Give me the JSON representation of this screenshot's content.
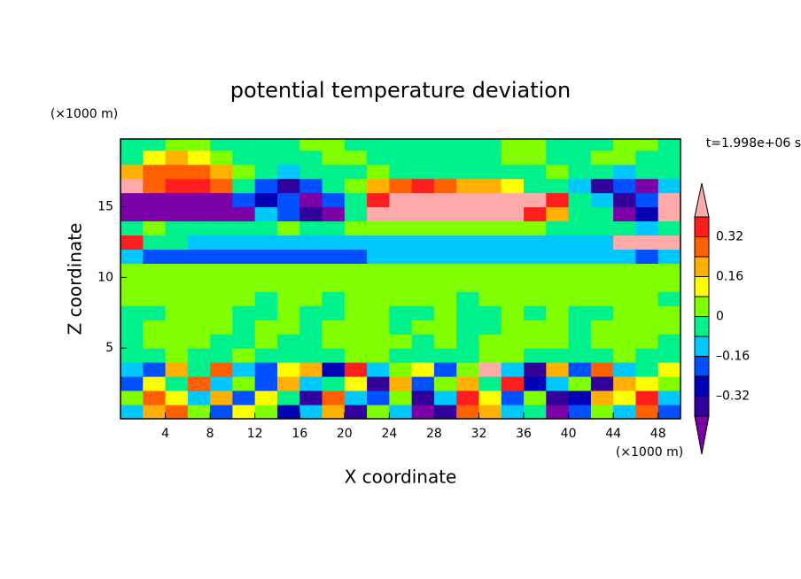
{
  "chart_data": {
    "type": "contour",
    "title": "potential temperature deviation",
    "subtitle": "t=1.998e+06 s",
    "xlabel": "X coordinate",
    "ylabel": "Z coordinate",
    "xunit": "(×1000 m)",
    "yunit": "(×1000 m)",
    "xlim": [
      0,
      50
    ],
    "ylim": [
      0,
      19.8
    ],
    "xticks": [
      4,
      8,
      12,
      16,
      20,
      24,
      28,
      32,
      36,
      40,
      44,
      48
    ],
    "yticks": [
      5,
      10,
      15
    ],
    "x": [
      1,
      3,
      5,
      7,
      9,
      11,
      13,
      15,
      17,
      19,
      21,
      23,
      25,
      27,
      29,
      31,
      33,
      35,
      37,
      39,
      41,
      43,
      45,
      47,
      49
    ],
    "z": [
      0.5,
      1.5,
      2.5,
      3.5,
      4.5,
      5.5,
      6.5,
      7.5,
      8.5,
      9.5,
      10.5,
      11.5,
      12.5,
      13.5,
      14.5,
      15.5,
      16.5,
      17.5,
      18.5,
      19.5
    ],
    "levels": [
      -0.4,
      -0.32,
      -0.24,
      -0.16,
      -0.08,
      0,
      0.08,
      0.16,
      0.24,
      0.32,
      0.4
    ],
    "colors": [
      "#7b00a8",
      "#32009a",
      "#0000b4",
      "#0050ff",
      "#00c8ff",
      "#00f08c",
      "#80ff00",
      "#ffff00",
      "#ffb000",
      "#ff6000",
      "#ff1e1e",
      "#ffaaaa"
    ],
    "colorbar_ticks": [
      {
        "value": 0.32,
        "label": "0.32"
      },
      {
        "value": 0.16,
        "label": "0.16"
      },
      0,
      {
        "value": -0.16,
        "label": "–0.16"
      },
      {
        "value": -0.32,
        "label": "–0.32"
      }
    ],
    "values": [
      [
        -0.12,
        0.2,
        0.28,
        0.04,
        -0.2,
        0.12,
        0.04,
        -0.28,
        -0.12,
        0.2,
        -0.36,
        0.04,
        -0.12,
        -0.45,
        -0.36,
        0.28,
        0.2,
        -0.12,
        -0.04,
        -0.45,
        -0.2,
        0.04,
        -0.12,
        0.28,
        -0.2
      ],
      [
        0.04,
        0.28,
        0.12,
        -0.12,
        0.2,
        -0.2,
        0.12,
        -0.04,
        -0.36,
        0.28,
        -0.12,
        -0.2,
        0.04,
        -0.36,
        -0.12,
        0.36,
        0.12,
        -0.2,
        0.04,
        -0.36,
        -0.28,
        0.2,
        0.12,
        0.36,
        -0.12
      ],
      [
        -0.2,
        0.12,
        -0.04,
        0.28,
        -0.12,
        0.04,
        -0.2,
        0.2,
        -0.12,
        -0.04,
        0.12,
        -0.36,
        0.2,
        -0.2,
        0.04,
        0.2,
        -0.04,
        0.36,
        -0.28,
        -0.12,
        0.04,
        -0.36,
        0.2,
        0.12,
        0.04
      ],
      [
        -0.12,
        -0.2,
        0.2,
        -0.04,
        0.28,
        -0.12,
        -0.2,
        0.12,
        0.2,
        -0.28,
        0.36,
        -0.12,
        0.04,
        0.12,
        -0.2,
        0.04,
        0.45,
        -0.12,
        -0.36,
        0.2,
        -0.2,
        0.28,
        -0.12,
        -0.04,
        0.12
      ],
      [
        -0.04,
        -0.04,
        0.04,
        -0.04,
        -0.04,
        0.04,
        -0.04,
        -0.04,
        -0.04,
        -0.04,
        0.04,
        0.04,
        -0.04,
        -0.04,
        -0.04,
        -0.04,
        0.04,
        0.04,
        -0.04,
        -0.04,
        -0.04,
        -0.04,
        0.04,
        -0.04,
        -0.04
      ],
      [
        -0.04,
        0.04,
        0.04,
        0.04,
        -0.04,
        -0.04,
        0.04,
        -0.04,
        -0.04,
        0.04,
        0.04,
        0.04,
        0.04,
        -0.04,
        0.04,
        -0.04,
        0.04,
        0.04,
        0.04,
        0.04,
        -0.04,
        0.04,
        0.04,
        0.04,
        -0.04
      ],
      [
        -0.04,
        0.04,
        0.04,
        0.04,
        0.04,
        -0.04,
        0.04,
        0.04,
        -0.04,
        0.04,
        0.04,
        0.04,
        -0.04,
        0.04,
        0.04,
        -0.04,
        -0.04,
        0.04,
        0.04,
        0.04,
        -0.04,
        0.04,
        0.04,
        0.04,
        0.04
      ],
      [
        -0.04,
        -0.04,
        0.04,
        0.04,
        0.04,
        -0.04,
        -0.04,
        0.04,
        -0.04,
        -0.04,
        0.04,
        0.04,
        -0.04,
        -0.04,
        0.04,
        -0.04,
        -0.04,
        0.04,
        -0.04,
        0.04,
        -0.04,
        -0.04,
        0.04,
        0.04,
        0.04
      ],
      [
        0.04,
        0.04,
        0.04,
        0.04,
        0.04,
        0.04,
        -0.04,
        0.04,
        0.04,
        -0.04,
        0.04,
        0.04,
        0.04,
        0.04,
        0.04,
        -0.04,
        0.04,
        0.04,
        0.04,
        0.04,
        0.04,
        0.04,
        0.04,
        0.04,
        -0.04
      ],
      [
        0.04,
        0.04,
        0.04,
        0.04,
        0.04,
        0.04,
        0.04,
        0.04,
        0.04,
        0.04,
        0.04,
        0.04,
        0.04,
        0.04,
        0.04,
        0.04,
        0.04,
        0.04,
        0.04,
        0.04,
        0.04,
        0.04,
        0.04,
        0.04,
        0.04
      ],
      [
        0.04,
        0.04,
        0.04,
        0.04,
        0.04,
        0.04,
        0.04,
        0.04,
        0.04,
        0.04,
        0.04,
        0.04,
        0.04,
        0.04,
        0.04,
        0.04,
        0.04,
        0.04,
        0.04,
        0.04,
        0.04,
        0.04,
        0.04,
        0.04,
        0.04
      ],
      [
        -0.12,
        -0.2,
        -0.2,
        -0.2,
        -0.2,
        -0.2,
        -0.2,
        -0.2,
        -0.2,
        -0.2,
        -0.2,
        -0.12,
        -0.12,
        -0.12,
        -0.12,
        -0.12,
        -0.12,
        -0.12,
        -0.12,
        -0.12,
        -0.12,
        -0.12,
        -0.12,
        -0.2,
        -0.12
      ],
      [
        0.36,
        -0.04,
        -0.04,
        -0.12,
        -0.12,
        -0.12,
        -0.12,
        -0.12,
        -0.12,
        -0.12,
        -0.12,
        -0.12,
        -0.12,
        -0.12,
        -0.12,
        -0.12,
        -0.12,
        -0.12,
        -0.12,
        -0.12,
        -0.12,
        -0.12,
        0.45,
        0.45,
        0.45
      ],
      [
        -0.04,
        0.04,
        -0.04,
        -0.04,
        -0.04,
        -0.04,
        -0.04,
        0.04,
        -0.04,
        -0.04,
        0.04,
        0.04,
        0.04,
        0.04,
        0.04,
        0.04,
        0.04,
        0.04,
        0.04,
        -0.04,
        -0.04,
        -0.04,
        -0.04,
        -0.12,
        -0.04
      ],
      [
        -0.45,
        -0.45,
        -0.45,
        -0.45,
        -0.45,
        -0.45,
        -0.12,
        -0.2,
        -0.36,
        -0.45,
        -0.04,
        0.45,
        0.45,
        0.45,
        0.45,
        0.45,
        0.45,
        0.45,
        0.36,
        0.2,
        -0.04,
        -0.04,
        -0.45,
        -0.28,
        0.45
      ],
      [
        -0.45,
        -0.45,
        -0.45,
        -0.45,
        -0.45,
        -0.2,
        -0.28,
        -0.2,
        -0.45,
        -0.2,
        -0.04,
        0.36,
        0.45,
        0.45,
        0.45,
        0.45,
        0.45,
        0.45,
        0.45,
        0.36,
        -0.04,
        -0.12,
        -0.36,
        -0.2,
        0.45
      ],
      [
        0.45,
        0.28,
        0.36,
        0.36,
        0.28,
        -0.04,
        -0.2,
        -0.36,
        -0.2,
        -0.04,
        0.04,
        0.2,
        0.28,
        0.36,
        0.28,
        0.2,
        0.2,
        0.12,
        -0.04,
        -0.04,
        -0.12,
        -0.36,
        -0.2,
        -0.45,
        -0.12
      ],
      [
        0.2,
        0.24,
        0.28,
        0.28,
        0.2,
        0.04,
        -0.04,
        -0.12,
        -0.04,
        -0.04,
        -0.04,
        0.04,
        -0.04,
        -0.04,
        -0.04,
        -0.04,
        -0.04,
        -0.04,
        -0.04,
        0.04,
        -0.04,
        -0.04,
        -0.12,
        -0.04,
        -0.04
      ],
      [
        -0.04,
        0.12,
        0.2,
        0.12,
        0.04,
        -0.04,
        -0.04,
        -0.04,
        -0.04,
        0.04,
        0.04,
        -0.04,
        -0.04,
        -0.04,
        -0.04,
        -0.04,
        -0.04,
        0.04,
        0.04,
        -0.04,
        -0.04,
        0.04,
        0.04,
        -0.04,
        -0.04
      ],
      [
        -0.04,
        -0.04,
        0.04,
        0.04,
        -0.04,
        -0.04,
        -0.04,
        -0.04,
        0.04,
        0.04,
        -0.04,
        -0.04,
        -0.04,
        -0.04,
        -0.04,
        -0.04,
        -0.04,
        0.04,
        0.04,
        -0.04,
        -0.04,
        -0.04,
        0.04,
        0.04,
        -0.04
      ]
    ]
  }
}
